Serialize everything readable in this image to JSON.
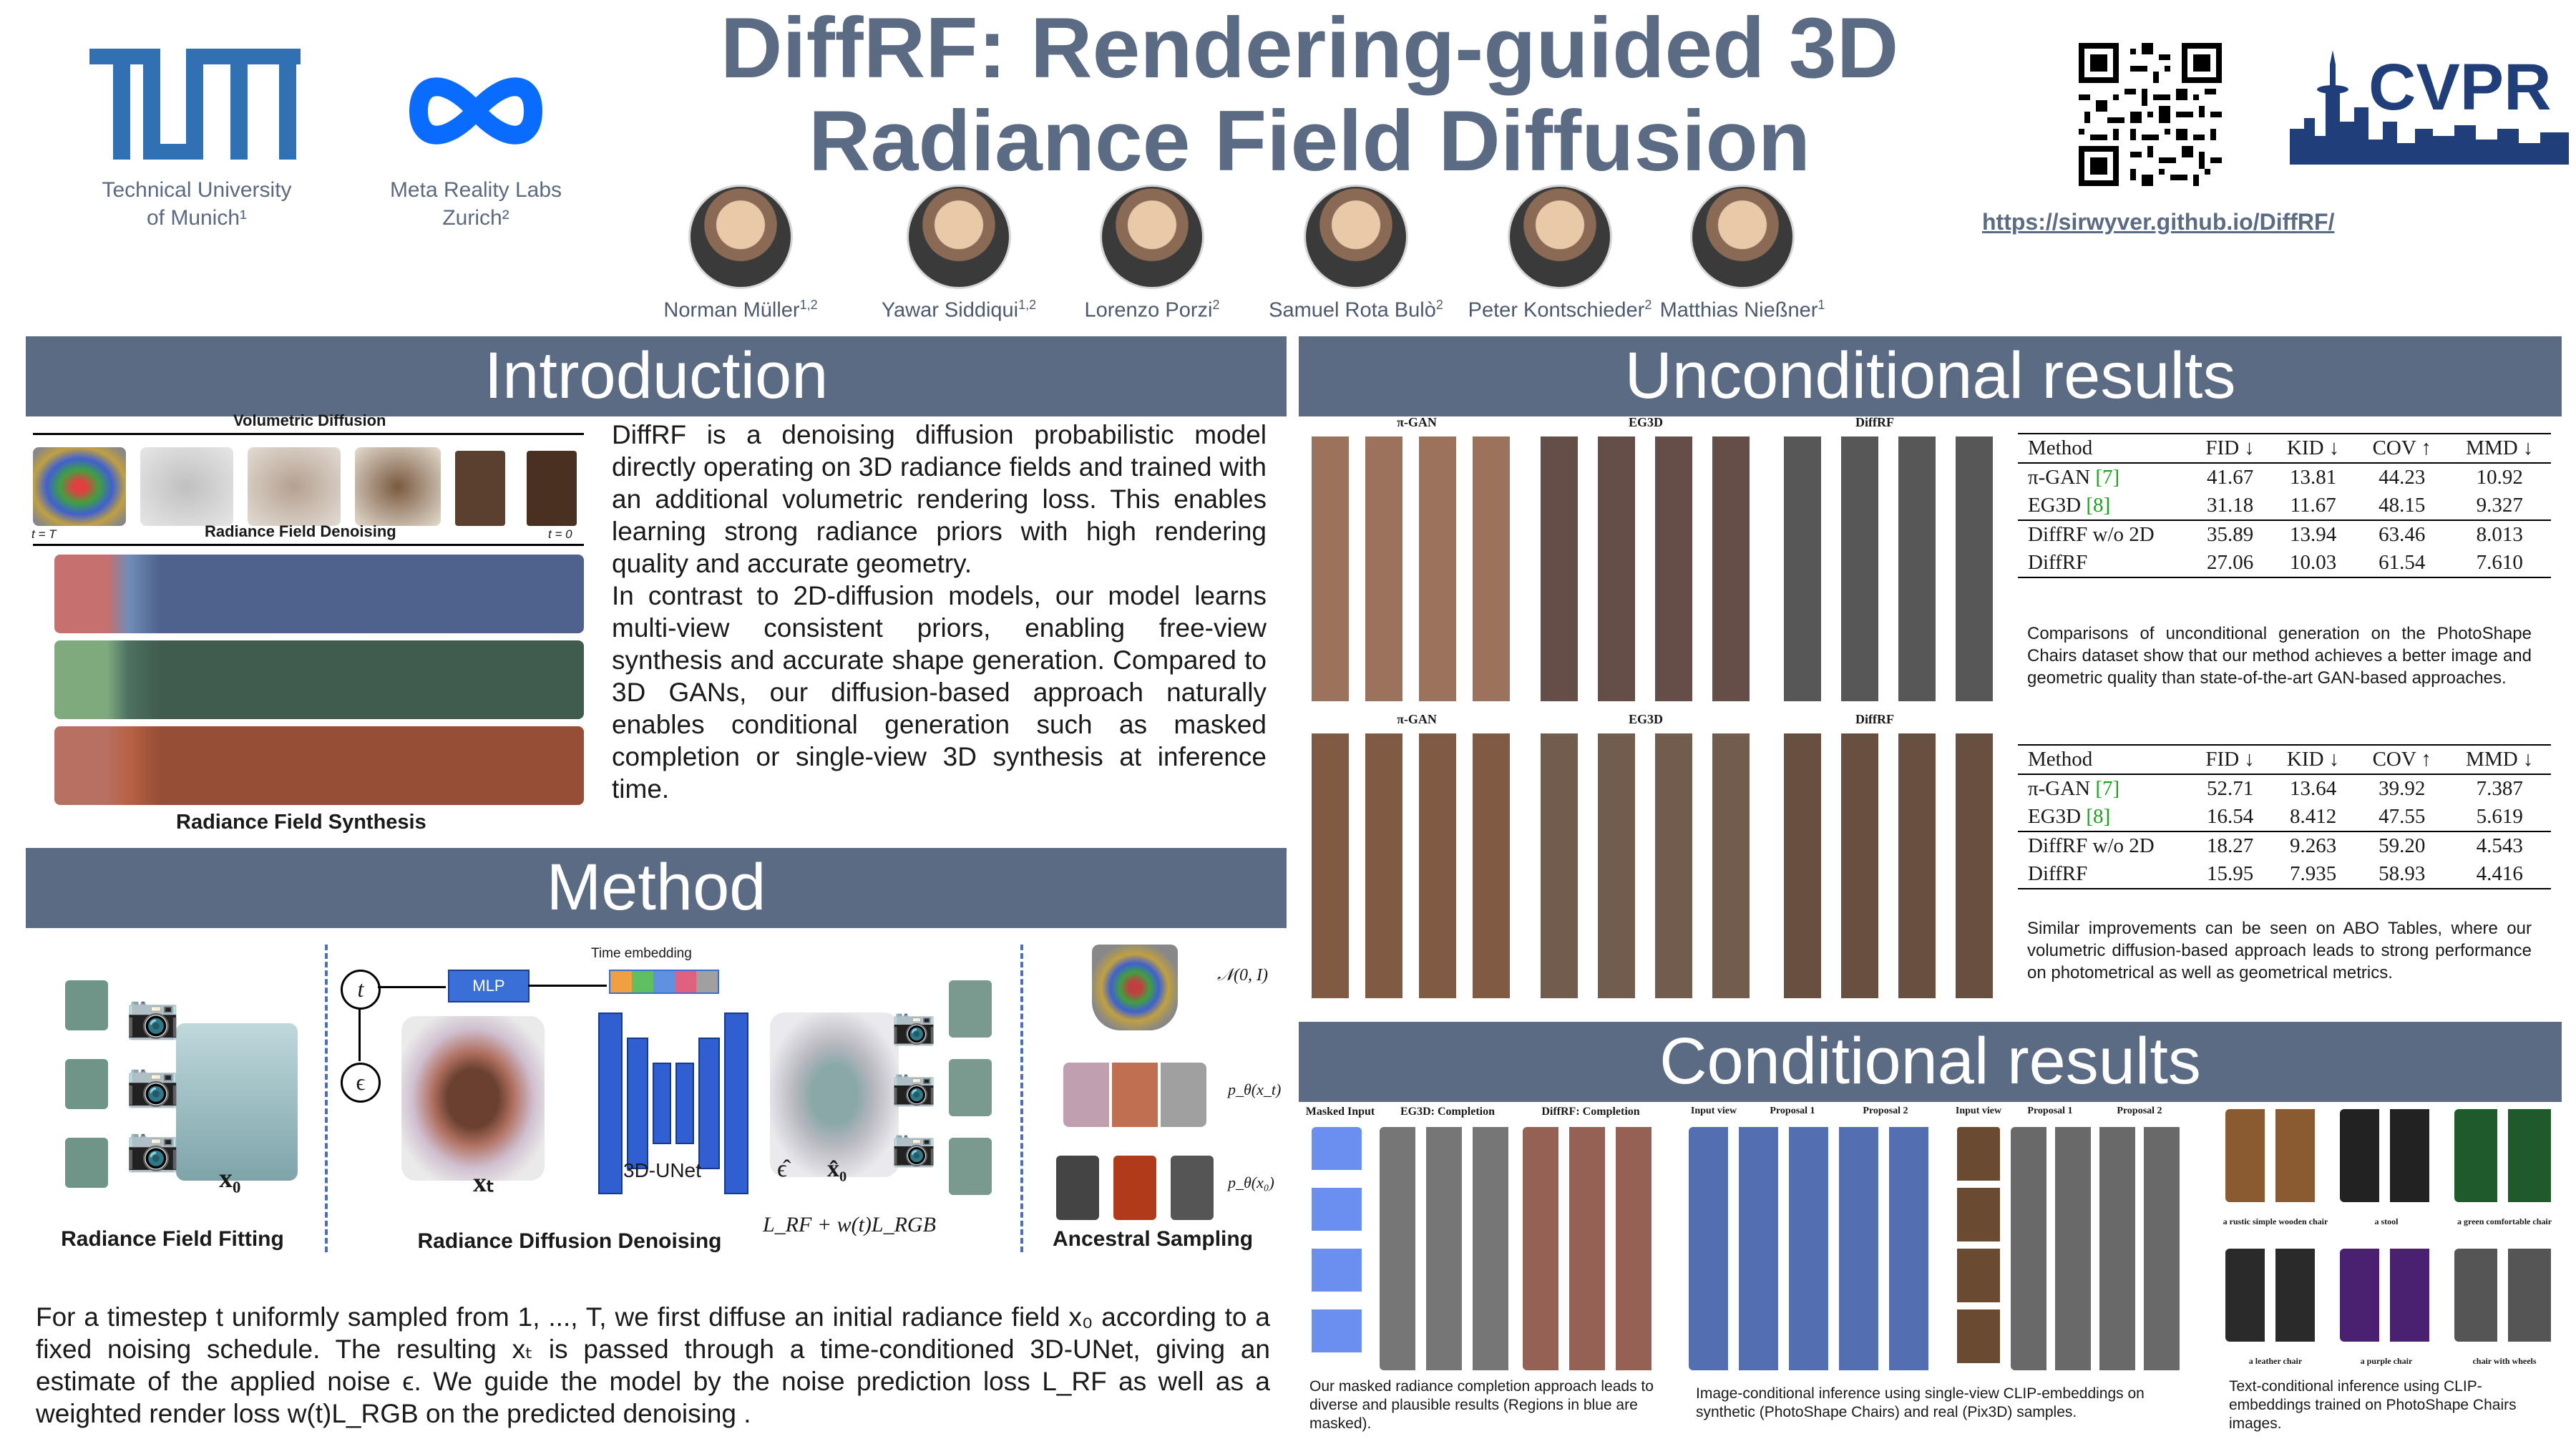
{
  "header": {
    "title_line1": "DiffRF: Rendering-guided 3D",
    "title_line2": "Radiance Field Diffusion",
    "logos": {
      "tum_text": "TUM",
      "tum_line1": "Technical University",
      "tum_line2": "of Munich¹",
      "meta_line1": "Meta Reality Labs",
      "meta_line2": "Zurich²",
      "cvpr_text": "CVPR"
    },
    "project_url": "https://sirwyver.github.io/DiffRF/",
    "authors": [
      {
        "name": "Norman Müller",
        "sup": "1,2"
      },
      {
        "name": "Yawar Siddiqui",
        "sup": "1,2"
      },
      {
        "name": "Lorenzo Porzi",
        "sup": "2"
      },
      {
        "name": "Samuel Rota Bulò",
        "sup": "2"
      },
      {
        "name": "Peter Kontschieder",
        "sup": "2"
      },
      {
        "name": "Matthias Nießner",
        "sup": "1"
      }
    ]
  },
  "introduction": {
    "heading": "Introduction",
    "fig_volumetric": "Volumetric Diffusion",
    "fig_denoising": "Radiance Field Denoising",
    "fig_t_start": "t = T",
    "fig_t_end": "t = 0",
    "fig_synthesis": "Radiance Field Synthesis",
    "paragraph1": "DiffRF is a denoising diffusion probabilistic model directly operating on 3D radiance fields and trained with an additional volumetric rendering loss. This enables learning strong radiance priors with high rendering quality and accurate geometry.",
    "paragraph2": "In contrast to 2D-diffusion models, our model learns multi-view consistent priors, enabling free-view synthesis and accurate shape generation. Compared to 3D GANs, our diffusion-based approach naturally enables conditional generation such as masked completion or single-view 3D synthesis at inference time."
  },
  "method": {
    "heading": "Method",
    "label_fitting": "Radiance Field Fitting",
    "label_denoising": "Radiance Diffusion Denoising",
    "label_sampling": "Ancestral Sampling",
    "x0": "x₀",
    "xt": "xₜ",
    "t": "t",
    "eps": "ϵ",
    "mlp": "MLP",
    "time_embedding": "Time embedding",
    "unet": "3D-UNet",
    "eps_hat": "ϵ̂",
    "x0_hat": "x̂₀",
    "loss": "L_RF + w(t)L_RGB",
    "normal": "𝒩(0, I)",
    "p_xt": "p_θ(x_t)",
    "p_x0": "p_θ(x₀)",
    "text_part1": "For a timestep t uniformly sampled from 1, ..., T, we first diffuse an initial radiance field x₀ according to a fixed noising schedule. The resulting xₜ is passed through a time-conditioned 3D-UNet, giving an estimate of the applied noise ϵ. We guide the model by the noise prediction loss L_RF as well as a weighted render loss w(t)L_RGB on the predicted denoising ."
  },
  "unconditional": {
    "heading": "Unconditional results",
    "grid_labels": [
      "π-GAN",
      "EG3D",
      "DiffRF"
    ],
    "table1": {
      "headers": [
        "Method",
        "FID ↓",
        "KID ↓",
        "COV ↑",
        "MMD ↓"
      ],
      "rows": [
        [
          "π-GAN [7]",
          "41.67",
          "13.81",
          "44.23",
          "10.92"
        ],
        [
          "EG3D [8]",
          "31.18",
          "11.67",
          "48.15",
          "9.327"
        ],
        [
          "DiffRF w/o 2D",
          "35.89",
          "13.94",
          "63.46",
          "8.013"
        ],
        [
          "DiffRF",
          "27.06",
          "10.03",
          "61.54",
          "7.610"
        ]
      ]
    },
    "caption1": "Comparisons of unconditional generation on the PhotoShape Chairs dataset show that our method achieves a better image and geometric quality than state-of-the-art GAN-based approaches.",
    "table2": {
      "headers": [
        "Method",
        "FID ↓",
        "KID ↓",
        "COV ↑",
        "MMD ↓"
      ],
      "rows": [
        [
          "π-GAN [7]",
          "52.71",
          "13.64",
          "39.92",
          "7.387"
        ],
        [
          "EG3D [8]",
          "16.54",
          "8.412",
          "47.55",
          "5.619"
        ],
        [
          "DiffRF w/o 2D",
          "18.27",
          "9.263",
          "59.20",
          "4.543"
        ],
        [
          "DiffRF",
          "15.95",
          "7.935",
          "58.93",
          "4.416"
        ]
      ]
    },
    "caption2": "Similar improvements can be seen on ABO Tables, where our volumetric diffusion-based approach leads to strong performance on photometrical as well as geometrical metrics."
  },
  "conditional": {
    "heading": "Conditional results",
    "masked_labels": [
      "Masked Input",
      "EG3D: Completion",
      "DiffRF: Completion"
    ],
    "image_labels": [
      "Input view",
      "Proposal 1",
      "Proposal 2",
      "Input view",
      "Proposal 1",
      "Proposal 2"
    ],
    "text_prompts": [
      "a rustic simple wooden chair",
      "a stool",
      "a green comfortable chair",
      "a leather chair",
      "a purple chair",
      "chair with wheels"
    ],
    "caption_masked": "Our masked radiance completion approach leads to diverse and plausible results (Regions in blue are masked).",
    "caption_image": "Image-conditional inference using single-view CLIP-embeddings on synthetic (PhotoShape Chairs) and real (Pix3D) samples.",
    "caption_text": "Text-conditional inference using CLIP-embeddings trained on PhotoShape Chairs images."
  },
  "colors": {
    "accent": "#5b6b84",
    "tum_blue": "#3070b3",
    "meta_blue": "#0a6cff",
    "cvpr_blue": "#1f3e7a",
    "link_green": "#1aa31a"
  }
}
